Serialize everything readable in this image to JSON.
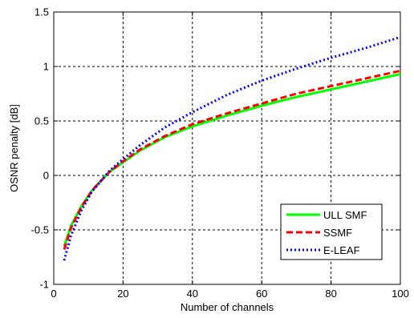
{
  "chart_data": {
    "type": "line",
    "xlabel": "Number of channels",
    "ylabel": "OSNR penalty  [dB]",
    "xlim": [
      0,
      100
    ],
    "ylim": [
      -1,
      1.5
    ],
    "xticks": [
      0,
      20,
      40,
      60,
      80,
      100
    ],
    "yticks": [
      -1,
      -0.5,
      0,
      0.5,
      1,
      1.5
    ],
    "xtick_labels": [
      "0",
      "20",
      "40",
      "60",
      "80",
      "100"
    ],
    "ytick_labels": [
      "-1",
      "-0.5",
      "0",
      "0.5",
      "1",
      "1.5"
    ],
    "grid": true,
    "grid_style": "dashed",
    "legend_position": "lower-right",
    "series": [
      {
        "name": "ULL SMF",
        "color": "#00ff00",
        "style": "solid",
        "x": [
          3,
          5,
          8,
          11,
          16,
          20,
          25,
          32,
          40,
          50,
          60,
          70,
          80,
          90,
          100
        ],
        "y": [
          -0.65,
          -0.46,
          -0.28,
          -0.14,
          0.03,
          0.12,
          0.23,
          0.35,
          0.45,
          0.55,
          0.64,
          0.72,
          0.79,
          0.86,
          0.93
        ]
      },
      {
        "name": "SSMF",
        "color": "#ff0000",
        "style": "dashed",
        "x": [
          3,
          5,
          8,
          11,
          16,
          20,
          25,
          32,
          40,
          50,
          60,
          70,
          80,
          90,
          100
        ],
        "y": [
          -0.68,
          -0.48,
          -0.29,
          -0.14,
          0.03,
          0.13,
          0.24,
          0.36,
          0.47,
          0.57,
          0.66,
          0.75,
          0.82,
          0.89,
          0.96
        ]
      },
      {
        "name": "E-LEAF",
        "color": "#0000ff",
        "style": "dotted",
        "x": [
          3,
          5,
          8,
          11,
          16,
          20,
          25,
          32,
          40,
          50,
          60,
          70,
          80,
          90,
          100
        ],
        "y": [
          -0.78,
          -0.55,
          -0.32,
          -0.15,
          0.04,
          0.15,
          0.28,
          0.44,
          0.58,
          0.74,
          0.87,
          0.98,
          1.08,
          1.17,
          1.27
        ]
      }
    ]
  }
}
